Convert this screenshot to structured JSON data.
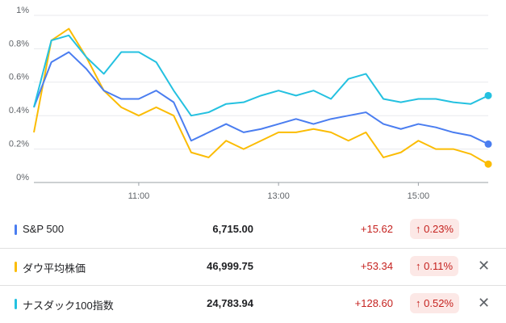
{
  "chart_data": {
    "type": "line",
    "x": [
      9.5,
      9.75,
      10,
      10.25,
      10.5,
      10.75,
      11,
      11.25,
      11.5,
      11.75,
      12,
      12.25,
      12.5,
      12.75,
      13,
      13.25,
      13.5,
      13.75,
      14,
      14.25,
      14.5,
      14.75,
      15,
      15.25,
      15.5,
      15.75,
      16
    ],
    "xlim": [
      9.5,
      16
    ],
    "xticks": [
      {
        "value": 11,
        "label": "11:00"
      },
      {
        "value": 13,
        "label": "13:00"
      },
      {
        "value": 15,
        "label": "15:00"
      }
    ],
    "ylim": [
      0,
      1
    ],
    "yticks": [
      {
        "value": 0,
        "label": "0%"
      },
      {
        "value": 0.2,
        "label": "0.2%"
      },
      {
        "value": 0.4,
        "label": "0.4%"
      },
      {
        "value": 0.6,
        "label": "0.6%"
      },
      {
        "value": 0.8,
        "label": "0.8%"
      },
      {
        "value": 1,
        "label": "1%"
      }
    ],
    "grid": true,
    "series": [
      {
        "name": "S&P 500",
        "color": "#4a7df0",
        "values": [
          0.45,
          0.72,
          0.78,
          0.68,
          0.55,
          0.5,
          0.5,
          0.55,
          0.48,
          0.25,
          0.3,
          0.35,
          0.3,
          0.32,
          0.35,
          0.38,
          0.35,
          0.38,
          0.4,
          0.42,
          0.35,
          0.32,
          0.35,
          0.33,
          0.3,
          0.28,
          0.23
        ]
      },
      {
        "name": "ダウ平均株価",
        "color": "#fbbc04",
        "values": [
          0.3,
          0.85,
          0.92,
          0.75,
          0.55,
          0.45,
          0.4,
          0.45,
          0.4,
          0.18,
          0.15,
          0.25,
          0.2,
          0.25,
          0.3,
          0.3,
          0.32,
          0.3,
          0.25,
          0.3,
          0.15,
          0.18,
          0.25,
          0.2,
          0.2,
          0.17,
          0.11
        ]
      },
      {
        "name": "ナスダック100指数",
        "color": "#24c1e0",
        "values": [
          0.45,
          0.85,
          0.88,
          0.75,
          0.65,
          0.78,
          0.78,
          0.72,
          0.55,
          0.4,
          0.42,
          0.47,
          0.48,
          0.52,
          0.55,
          0.52,
          0.55,
          0.5,
          0.62,
          0.65,
          0.5,
          0.48,
          0.5,
          0.5,
          0.48,
          0.47,
          0.52
        ]
      }
    ]
  },
  "quotes": [
    {
      "price": "6,715.00",
      "change": "+15.62",
      "percent": "0.23%"
    },
    {
      "price": "46,999.75",
      "change": "+53.34",
      "percent": "0.11%"
    },
    {
      "price": "24,783.94",
      "change": "+128.60",
      "percent": "0.52%"
    }
  ]
}
